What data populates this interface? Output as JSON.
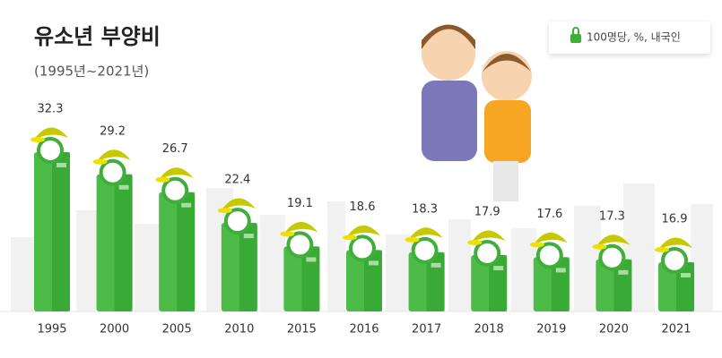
{
  "chart_data": {
    "type": "bar",
    "title": "유소년 부양비",
    "subtitle": "(1995년~2021년)",
    "note": "100명당, %, 내국인",
    "categories": [
      "1995",
      "2000",
      "2005",
      "2010",
      "2015",
      "2016",
      "2017",
      "2018",
      "2019",
      "2020",
      "2021"
    ],
    "values": [
      32.3,
      29.2,
      26.7,
      22.4,
      19.1,
      18.6,
      18.3,
      17.9,
      17.6,
      17.3,
      16.9
    ],
    "color": "#4cbb47"
  }
}
